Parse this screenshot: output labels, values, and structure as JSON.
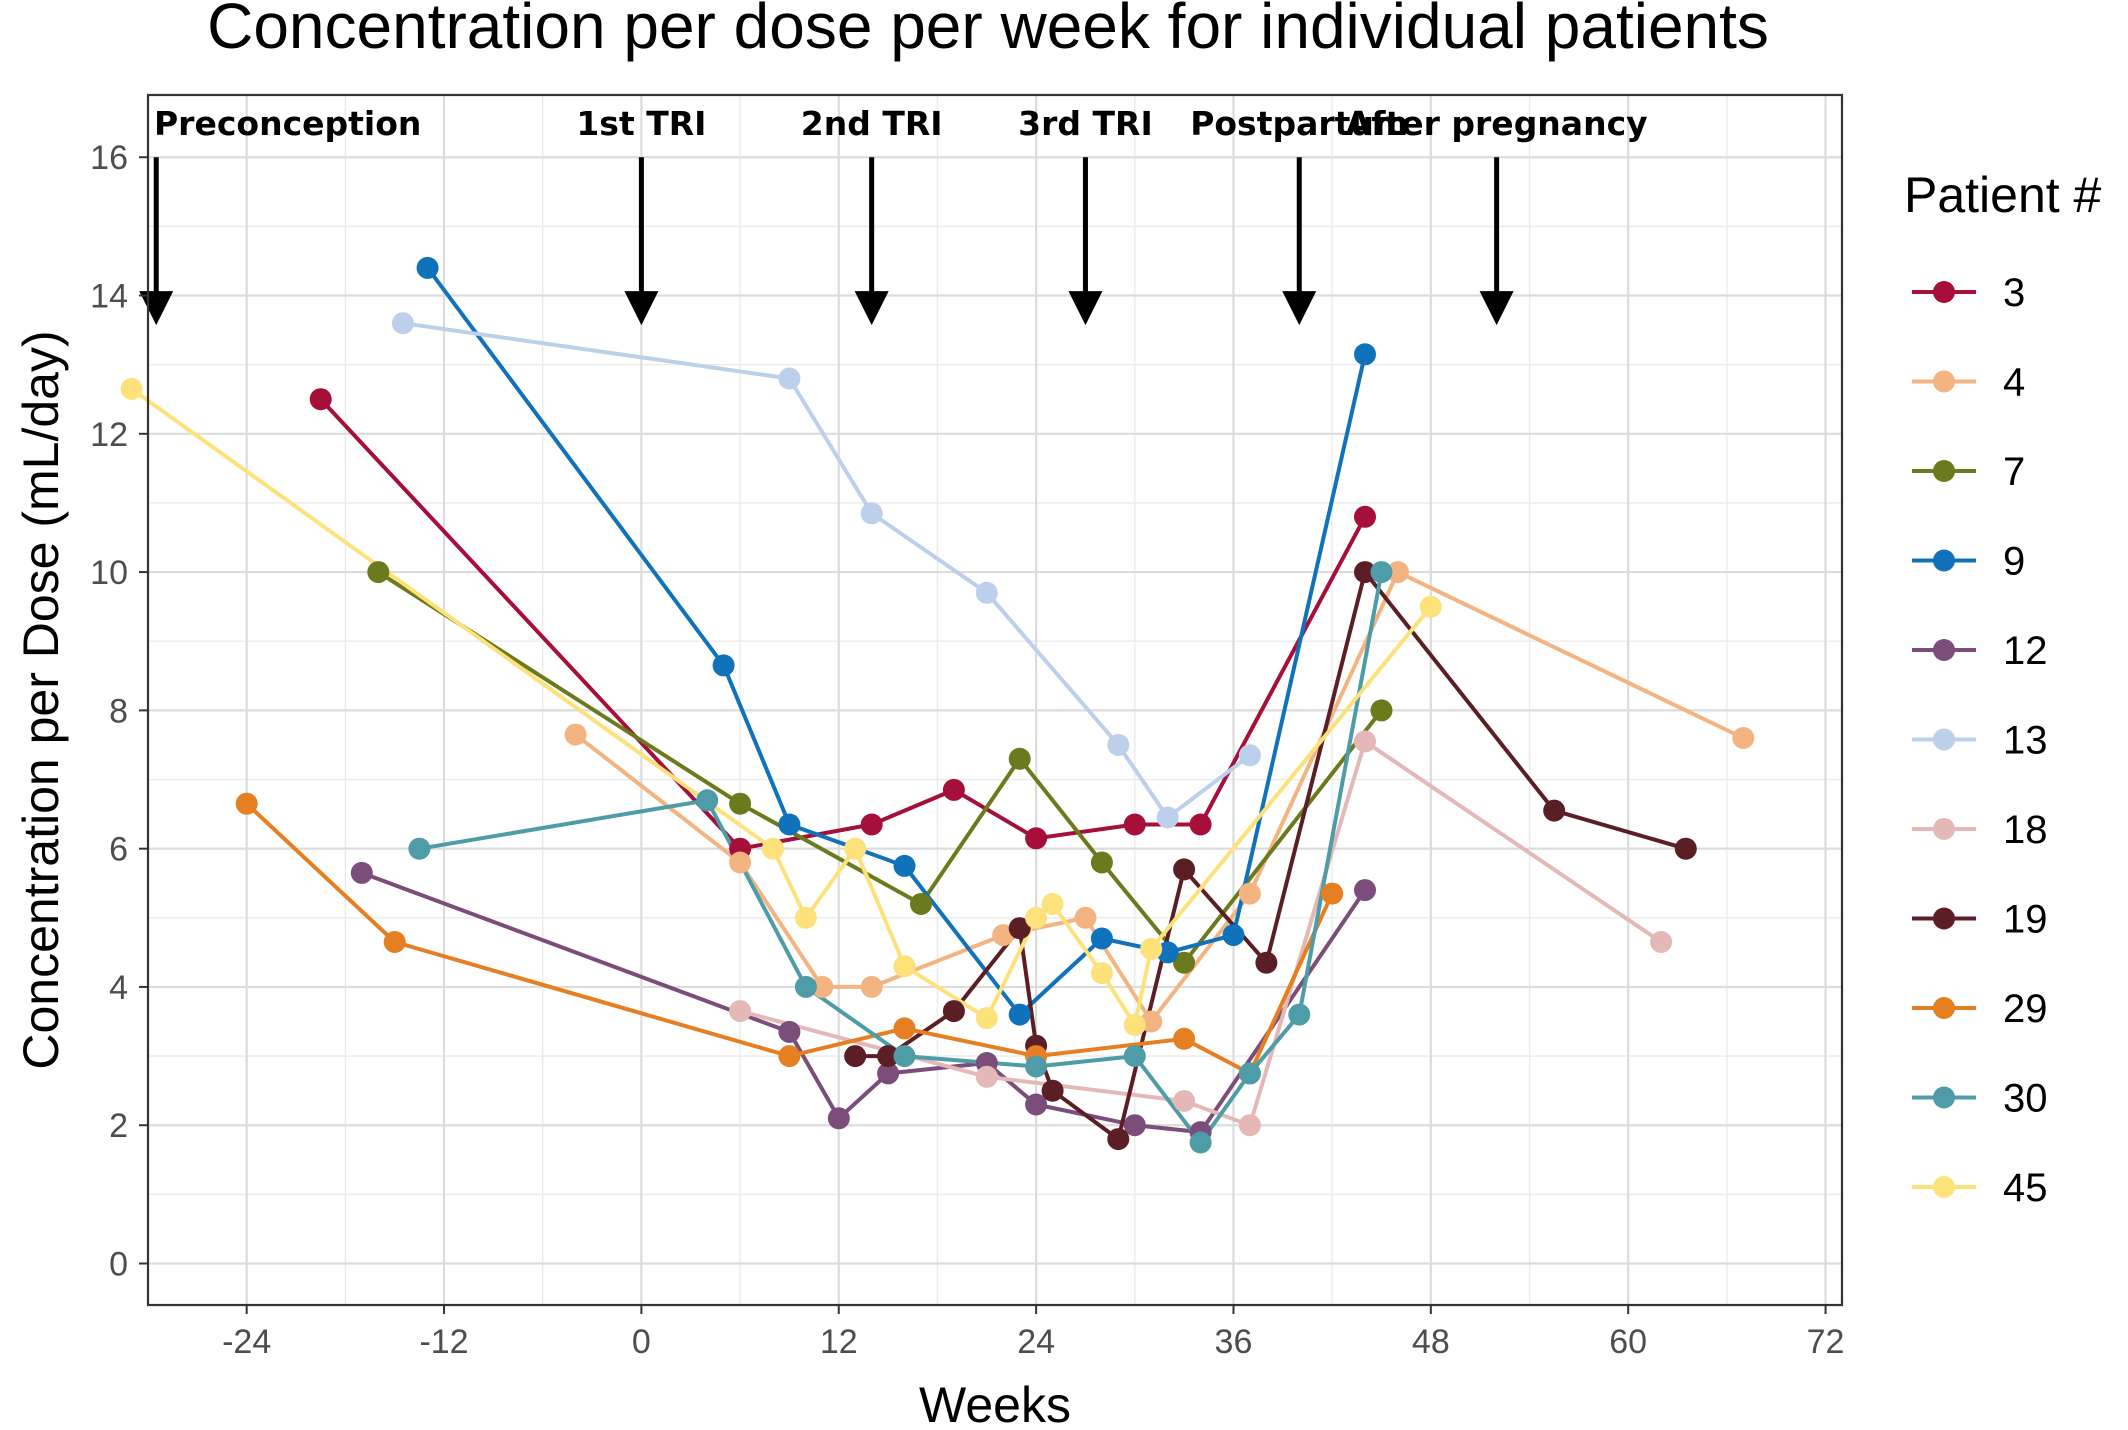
{
  "chart_data": {
    "type": "line",
    "title": "Concentration per dose per week for individual patients",
    "xlabel": "Weeks",
    "ylabel": "Concentration per Dose (mL/day)",
    "xlim": [
      -30,
      73
    ],
    "ylim": [
      -0.6,
      16.9
    ],
    "xticks": [
      -24,
      -12,
      0,
      12,
      24,
      36,
      48,
      60,
      72
    ],
    "xtick_labels": [
      "-24",
      "-12",
      "0",
      "12",
      "24",
      "36",
      "48",
      "60",
      "72"
    ],
    "yticks": [
      0,
      2,
      4,
      6,
      8,
      10,
      12,
      14,
      16
    ],
    "ytick_labels": [
      "0",
      "2",
      "4",
      "6",
      "8",
      "10",
      "12",
      "14",
      "16"
    ],
    "grid": true,
    "legend_title": "Patient #",
    "legend_position": "right",
    "annotations": [
      {
        "label": "Preconception",
        "x": -29.5
      },
      {
        "label": "1st TRI",
        "x": 0
      },
      {
        "label": "2nd TRI",
        "x": 14
      },
      {
        "label": "3rd TRI",
        "x": 27
      },
      {
        "label": "Postpartum",
        "x": 40
      },
      {
        "label": "After pregnancy",
        "x": 52
      }
    ],
    "annotation_arrow_range": [
      16.0,
      13.6
    ],
    "series": [
      {
        "name": "3",
        "color": "#A50F3A",
        "points": [
          [
            -19.5,
            12.5
          ],
          [
            6,
            6.0
          ],
          [
            14,
            6.35
          ],
          [
            19,
            6.85
          ],
          [
            24,
            6.15
          ],
          [
            30,
            6.35
          ],
          [
            34,
            6.35
          ],
          [
            44,
            10.8
          ]
        ]
      },
      {
        "name": "4",
        "color": "#F4B482",
        "points": [
          [
            -4,
            7.65
          ],
          [
            6,
            5.8
          ],
          [
            11,
            4.0
          ],
          [
            14,
            4.0
          ],
          [
            22,
            4.75
          ],
          [
            27,
            5.0
          ],
          [
            31,
            3.5
          ],
          [
            37,
            5.35
          ],
          [
            46,
            10.0
          ],
          [
            67,
            7.6
          ]
        ]
      },
      {
        "name": "7",
        "color": "#6B7A1C",
        "points": [
          [
            -16,
            10.0
          ],
          [
            6,
            6.65
          ],
          [
            17,
            5.2
          ],
          [
            23,
            7.3
          ],
          [
            28,
            5.8
          ],
          [
            33,
            4.35
          ],
          [
            45,
            8.0
          ]
        ]
      },
      {
        "name": "9",
        "color": "#0F72BB",
        "points": [
          [
            -13,
            14.4
          ],
          [
            5,
            8.65
          ],
          [
            9,
            6.35
          ],
          [
            16,
            5.75
          ],
          [
            23,
            3.6
          ],
          [
            28,
            4.7
          ],
          [
            32,
            4.5
          ],
          [
            36,
            4.75
          ],
          [
            44,
            13.15
          ]
        ]
      },
      {
        "name": "12",
        "color": "#7B4D7A",
        "points": [
          [
            -17,
            5.65
          ],
          [
            9,
            3.35
          ],
          [
            12,
            2.1
          ],
          [
            15,
            2.75
          ],
          [
            21,
            2.9
          ],
          [
            24,
            2.3
          ],
          [
            30,
            2.0
          ],
          [
            34,
            1.9
          ],
          [
            44,
            5.4
          ]
        ]
      },
      {
        "name": "13",
        "color": "#BCD0EC",
        "points": [
          [
            -14.5,
            13.6
          ],
          [
            9,
            12.8
          ],
          [
            14,
            10.85
          ],
          [
            21,
            9.7
          ],
          [
            29,
            7.5
          ],
          [
            32,
            6.45
          ],
          [
            37,
            7.35
          ]
        ]
      },
      {
        "name": "18",
        "color": "#E5B8B8",
        "points": [
          [
            6,
            3.65
          ],
          [
            21,
            2.7
          ],
          [
            33,
            2.35
          ],
          [
            37,
            2.0
          ],
          [
            44,
            7.55
          ],
          [
            62,
            4.65
          ]
        ]
      },
      {
        "name": "19",
        "color": "#5A1E24",
        "points": [
          [
            13,
            3.0
          ],
          [
            15,
            3.0
          ],
          [
            19,
            3.65
          ],
          [
            23,
            4.85
          ],
          [
            24,
            3.15
          ],
          [
            25,
            2.5
          ],
          [
            29,
            1.8
          ],
          [
            33,
            5.7
          ],
          [
            38,
            4.35
          ],
          [
            44,
            10.0
          ],
          [
            55.5,
            6.55
          ],
          [
            63.5,
            6.0
          ]
        ]
      },
      {
        "name": "29",
        "color": "#E67E22",
        "points": [
          [
            -24,
            6.65
          ],
          [
            -15,
            4.65
          ],
          [
            9,
            3.0
          ],
          [
            16,
            3.4
          ],
          [
            24,
            3.0
          ],
          [
            33,
            3.25
          ],
          [
            37,
            2.75
          ],
          [
            42,
            5.35
          ]
        ]
      },
      {
        "name": "30",
        "color": "#4E9CA8",
        "points": [
          [
            -13.5,
            6.0
          ],
          [
            4,
            6.7
          ],
          [
            10,
            4.0
          ],
          [
            16,
            3.0
          ],
          [
            24,
            2.85
          ],
          [
            30,
            3.0
          ],
          [
            34,
            1.75
          ],
          [
            37,
            2.75
          ],
          [
            40,
            3.6
          ],
          [
            45,
            10.0
          ]
        ]
      },
      {
        "name": "45",
        "color": "#FDE17A",
        "points": [
          [
            -31,
            12.65
          ],
          [
            8,
            6.0
          ],
          [
            10,
            5.0
          ],
          [
            13,
            6.0
          ],
          [
            16,
            4.3
          ],
          [
            21,
            3.55
          ],
          [
            24,
            5.0
          ],
          [
            25,
            5.2
          ],
          [
            28,
            4.2
          ],
          [
            30,
            3.45
          ],
          [
            31,
            4.55
          ],
          [
            48,
            9.5
          ]
        ]
      }
    ]
  }
}
